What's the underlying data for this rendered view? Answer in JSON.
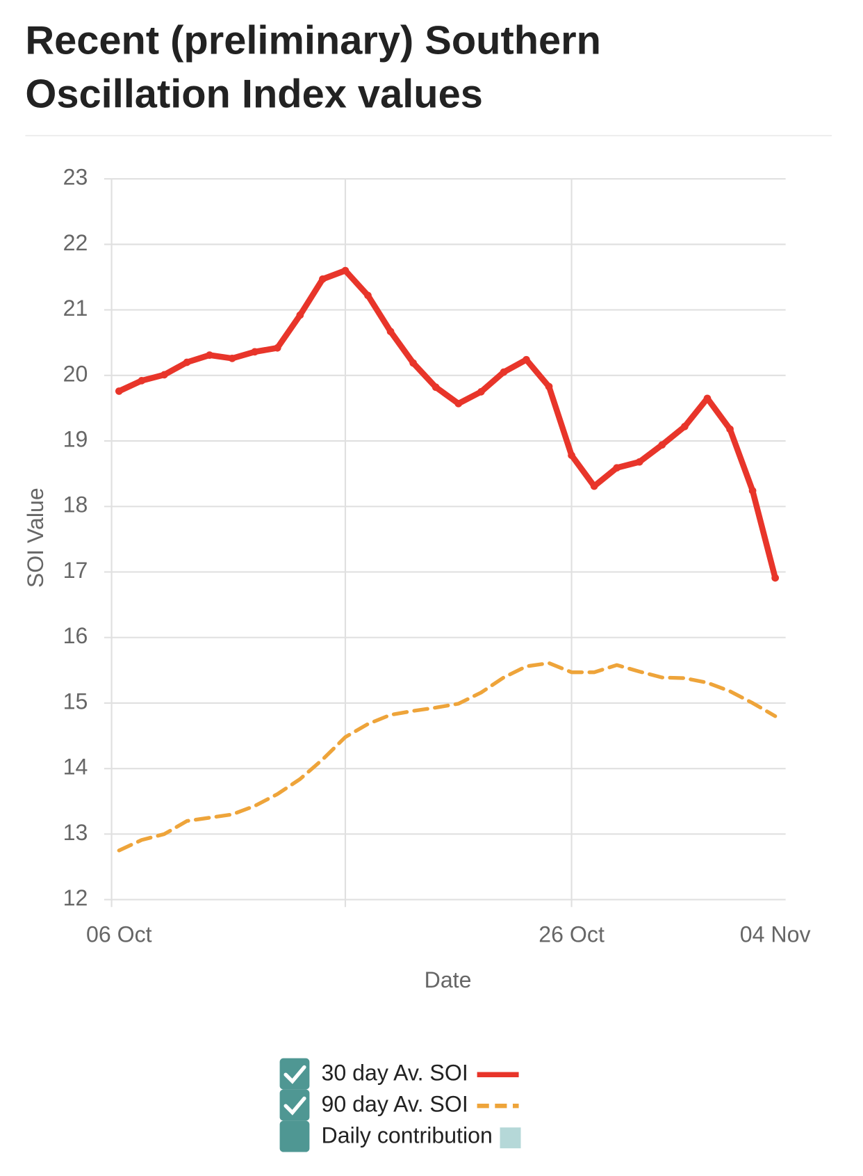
{
  "chart_data": {
    "type": "line",
    "title": [
      "Recent (preliminary) Southern",
      "Oscillation Index values"
    ],
    "x_label": "Date",
    "y_label": "SOI Value",
    "categories": [
      "06 Oct",
      null,
      null,
      null,
      null,
      null,
      null,
      null,
      null,
      null,
      null,
      null,
      null,
      null,
      null,
      null,
      null,
      null,
      null,
      null,
      "26 Oct",
      null,
      null,
      null,
      null,
      null,
      null,
      null,
      null,
      "04 Nov"
    ],
    "ylim": [
      12,
      23
    ],
    "yticks": [
      12,
      13,
      14,
      15,
      16,
      17,
      18,
      19,
      20,
      21,
      22,
      23
    ],
    "grid": true,
    "legend": "bottom",
    "series": [
      {
        "name": "30 day Av. SOI",
        "color": "#e8352a",
        "dashed": false,
        "values": [
          19.76,
          19.92,
          20.01,
          20.2,
          20.31,
          20.26,
          20.36,
          20.42,
          20.92,
          21.47,
          21.6,
          21.22,
          20.67,
          20.19,
          19.82,
          19.57,
          19.75,
          20.05,
          20.24,
          19.83,
          18.78,
          18.31,
          18.59,
          18.68,
          18.94,
          19.22,
          19.65,
          19.18,
          18.24,
          16.91
        ]
      },
      {
        "name": "90 day Av. SOI",
        "color": "#eea43a",
        "dashed": true,
        "values": [
          12.75,
          12.91,
          13.0,
          13.2,
          13.25,
          13.3,
          13.43,
          13.61,
          13.84,
          14.14,
          14.48,
          14.68,
          14.82,
          14.88,
          14.93,
          14.99,
          15.16,
          15.39,
          15.56,
          15.61,
          15.47,
          15.47,
          15.58,
          15.48,
          15.39,
          15.38,
          15.31,
          15.18,
          15.0,
          14.8
        ]
      }
    ],
    "extra_legend": {
      "name": "Daily contribution",
      "color": "#b5d8d8"
    }
  }
}
